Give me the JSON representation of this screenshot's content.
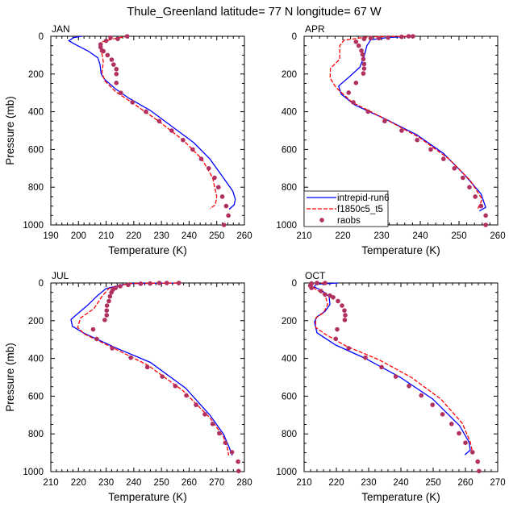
{
  "title": "Thule_Greenland  latitude= 77 N longitude= 67 W",
  "colors": {
    "model1": "#0000ff",
    "model2": "#ff0000",
    "obs": "#b03060"
  },
  "legend": [
    "intrepid-run6",
    "f1850c5_t5",
    "raobs"
  ],
  "chart_data": [
    {
      "type": "line",
      "title": "JAN",
      "xlabel": "Temperature (K)",
      "ylabel": "Pressure (mb)",
      "xlim": [
        190,
        260
      ],
      "ylim": [
        0,
        1000
      ],
      "xticks": [
        190,
        200,
        210,
        220,
        230,
        240,
        250,
        260
      ],
      "yticks": [
        0,
        200,
        400,
        600,
        800,
        1000
      ],
      "series": [
        {
          "name": "intrepid-run6",
          "T": [
            201.2,
            198.3,
            196.5,
            198.8,
            203.6,
            207,
            207.8,
            208.2,
            209.5,
            213.4,
            218.3,
            226,
            233.9,
            241.7,
            247.5,
            252.4,
            255.8,
            256.7,
            256.3,
            254.5
          ],
          "P": [
            0,
            7,
            24,
            43,
            79,
            114,
            150,
            200,
            229,
            279,
            329,
            393,
            479,
            564,
            650,
            750,
            821,
            864,
            893,
            917
          ]
        },
        {
          "name": "f1850c5_t5",
          "T": [
            218,
            212.4,
            208.5,
            207.5,
            208.5,
            209,
            208.5,
            209.5,
            213.4,
            219.2,
            229,
            237.8,
            244.6,
            248.5,
            250,
            249.5,
            247.5
          ],
          "P": [
            0,
            14,
            29,
            50,
            93,
            136,
            193,
            236,
            293,
            350,
            450,
            550,
            650,
            750,
            850,
            893,
            914
          ]
        },
        {
          "name": "raobs",
          "T": [
            217.6,
            214.2,
            211.6,
            210,
            208,
            208,
            208.5,
            209,
            210.5,
            212,
            212.7,
            213.7,
            213.7,
            213.7,
            215.3,
            219.5,
            224.4,
            229.2,
            233.7,
            237.8,
            241.3,
            244.4,
            247.1,
            249.2,
            250.6,
            252,
            253.4,
            254.2,
            252.6
          ],
          "P": [
            0,
            14,
            7,
            24,
            43,
            57,
            76,
            79,
            100,
            124,
            150,
            174,
            200,
            247,
            300,
            350,
            400,
            450,
            500,
            550,
            600,
            650,
            700,
            750,
            800,
            850,
            900,
            950,
            1000
          ]
        }
      ]
    },
    {
      "type": "line",
      "title": "APR",
      "xlabel": "Temperature (K)",
      "ylabel": "",
      "xlim": [
        210,
        260
      ],
      "ylim": [
        0,
        1000
      ],
      "xticks": [
        210,
        220,
        230,
        240,
        250,
        260
      ],
      "yticks": [
        0,
        200,
        400,
        600,
        800,
        1000
      ],
      "series": [
        {
          "name": "intrepid-run6",
          "T": [
            238,
            231.4,
            227.2,
            226.2,
            225.5,
            224.4,
            221.7,
            218.9,
            219.6,
            223.1,
            230.7,
            239,
            246,
            251.5,
            255.7,
            256.9,
            255.3
          ],
          "P": [
            0,
            7,
            19,
            50,
            107,
            164,
            214,
            264,
            307,
            364,
            436,
            521,
            621,
            736,
            836,
            907,
            926
          ]
        },
        {
          "name": "f1850c5_t5",
          "T": [
            238,
            226.5,
            220.3,
            219.2,
            219.2,
            216.8,
            216.7,
            218.2,
            222.4,
            230.7,
            239.7,
            247.4,
            252.9,
            256,
            254.7
          ],
          "P": [
            0,
            3,
            21,
            50,
            121,
            171,
            221,
            271,
            350,
            436,
            536,
            650,
            764,
            864,
            921
          ]
        },
        {
          "name": "raobs",
          "T": [
            238.1,
            237,
            235.2,
            231.7,
            229.3,
            227.2,
            225.5,
            223.4,
            224.1,
            224.8,
            225.1,
            225.3,
            225.5,
            225.5,
            225.3,
            223.4,
            221.5,
            222.7,
            226.5,
            230.8,
            235.2,
            239.2,
            242.7,
            246,
            248.8,
            251,
            252.7,
            254.2,
            255.7,
            256.9,
            256.9
          ],
          "P": [
            0,
            0,
            3,
            7,
            10,
            10,
            14,
            29,
            50,
            76,
            97,
            121,
            147,
            171,
            197,
            247,
            299,
            350,
            399,
            450,
            500,
            550,
            600,
            650,
            700,
            750,
            800,
            850,
            900,
            950,
            1000
          ]
        }
      ]
    },
    {
      "type": "line",
      "title": "JUL",
      "xlabel": "Temperature (K)",
      "ylabel": "Pressure (mb)",
      "xlim": [
        210,
        280
      ],
      "ylim": [
        0,
        1000
      ],
      "xticks": [
        210,
        220,
        230,
        240,
        250,
        260,
        270,
        280
      ],
      "yticks": [
        0,
        200,
        400,
        600,
        800,
        1000
      ],
      "series": [
        {
          "name": "intrepid-run6",
          "T": [
            256.3,
            238.3,
            230,
            226.6,
            223.6,
            217.3,
            217.8,
            221.7,
            233.4,
            246,
            258.7,
            267.5,
            272.4,
            274.5,
            275.6
          ],
          "P": [
            0,
            3,
            29,
            71,
            114,
            193,
            229,
            264,
            343,
            421,
            557,
            700,
            800,
            871,
            914
          ]
        },
        {
          "name": "f1850c5_t5",
          "T": [
            255.8,
            238.3,
            231,
            228.5,
            225.6,
            220.7,
            219.7,
            222.2,
            233.4,
            245.1,
            257.8,
            267.5,
            272.4,
            273.8,
            274.3
          ],
          "P": [
            0,
            3,
            29,
            71,
            136,
            186,
            236,
            271,
            350,
            436,
            571,
            714,
            814,
            871,
            914
          ]
        },
        {
          "name": "raobs",
          "T": [
            256.3,
            251.9,
            249.2,
            245.9,
            242.5,
            238,
            235.1,
            233.4,
            232.4,
            231.9,
            231.4,
            231,
            230.3,
            230.2,
            230.2,
            229.5,
            225.3,
            226.6,
            232.2,
            238.9,
            244.9,
            250.3,
            255,
            259,
            262.5,
            265.7,
            268.5,
            270.9,
            273.1,
            275.5,
            277.7,
            277.9
          ],
          "P": [
            0,
            0,
            0,
            3,
            4,
            10,
            17,
            26,
            36,
            50,
            71,
            96,
            120,
            146,
            171,
            196,
            246,
            297,
            346,
            396,
            446,
            496,
            546,
            596,
            646,
            696,
            747,
            797,
            847,
            897,
            947,
            997
          ]
        }
      ]
    },
    {
      "type": "line",
      "title": "OCT",
      "xlabel": "Temperature (K)",
      "ylabel": "",
      "xlim": [
        210,
        270
      ],
      "ylim": [
        0,
        1000
      ],
      "xticks": [
        210,
        220,
        230,
        240,
        250,
        260,
        270
      ],
      "yticks": [
        0,
        200,
        400,
        600,
        800,
        1000
      ],
      "series": [
        {
          "name": "intrepid-run6",
          "T": [
            220.5,
            213.6,
            213.2,
            215.7,
            217.75,
            218,
            216.5,
            214,
            213.2,
            214,
            219.8,
            229,
            239.8,
            249.8,
            258.2,
            261.1,
            261.5,
            259.8
          ],
          "P": [
            0,
            7,
            21,
            43,
            71,
            114,
            150,
            179,
            207,
            264,
            329,
            400,
            500,
            614,
            757,
            843,
            886,
            911
          ]
        },
        {
          "name": "f1850c5_t5",
          "T": [
            216.5,
            212.3,
            213.2,
            216.5,
            217.3,
            216.1,
            213.6,
            213.6,
            216.5,
            223.2,
            233.2,
            243.2,
            252.3,
            259,
            261.5,
            262.2
          ],
          "P": [
            0,
            7,
            29,
            64,
            114,
            157,
            186,
            236,
            271,
            336,
            407,
            500,
            614,
            743,
            843,
            900
          ]
        },
        {
          "name": "raobs",
          "T": [
            216.5,
            214,
            212.3,
            211.9,
            212.3,
            215.25,
            216.5,
            218,
            219,
            220.5,
            221.75,
            222.5,
            222.75,
            222.6,
            220.25,
            219.8,
            223.8,
            229,
            234,
            238.4,
            242.5,
            246.3,
            249.8,
            252.9,
            255.7,
            258,
            260,
            262.2,
            263.8,
            264.2
          ],
          "P": [
            0,
            0,
            3,
            14,
            26,
            43,
            61,
            67,
            76,
            96,
            120,
            146,
            171,
            196,
            246,
            296,
            346,
            396,
            446,
            496,
            546,
            596,
            646,
            696,
            747,
            797,
            847,
            897,
            947,
            997
          ]
        }
      ]
    }
  ]
}
